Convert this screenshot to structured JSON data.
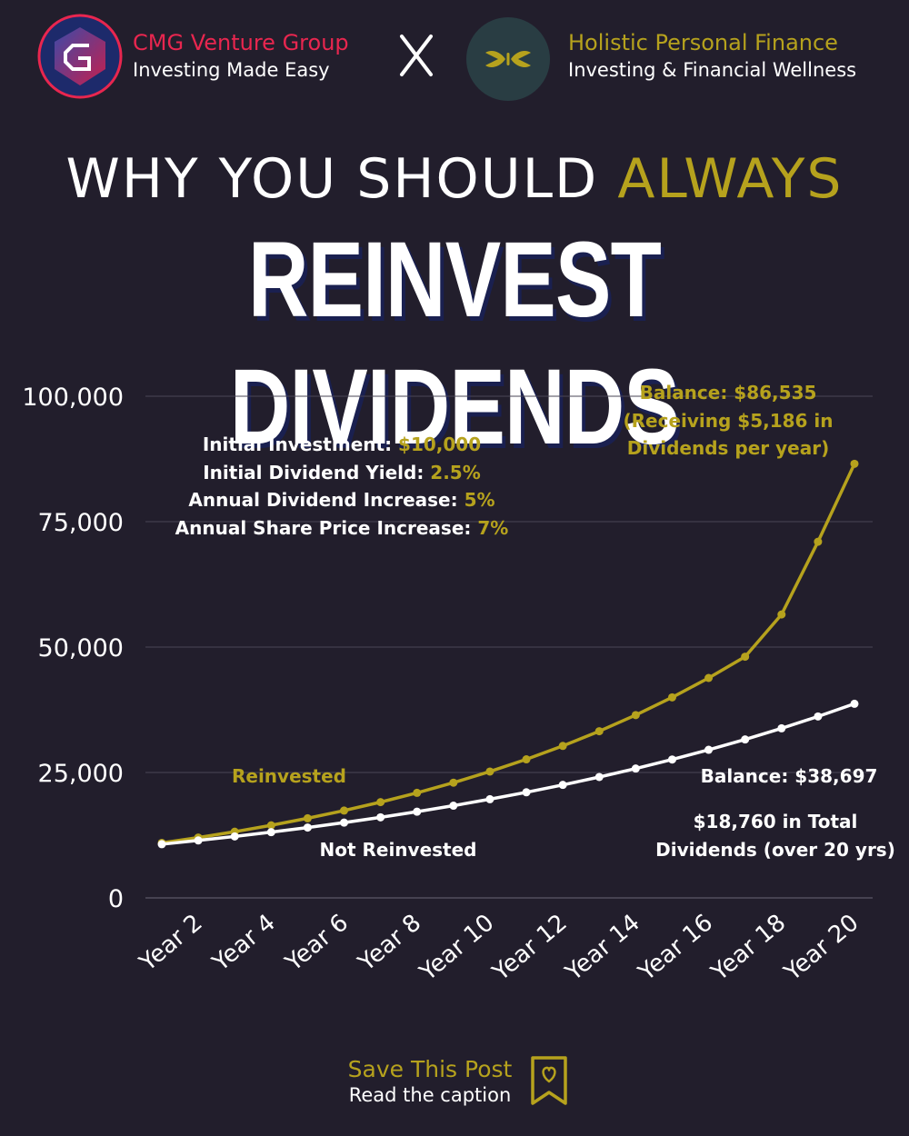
{
  "colors": {
    "background": "#221e2c",
    "gold": "#b6a21d",
    "white": "#ffffff",
    "cmg_red": "#e8264f",
    "grid": "#4a4656"
  },
  "header": {
    "left": {
      "name": "CMG Venture Group",
      "tagline": "Investing Made Easy",
      "logo_icon": "cmg-logo-icon"
    },
    "separator": "X",
    "right": {
      "name": "Holistic Personal Finance",
      "tagline": "Investing & Financial Wellness",
      "logo_icon": "butterfly-logo-icon"
    }
  },
  "title": {
    "line1_white": "WHY YOU SHOULD",
    "line1_gold": "ALWAYS",
    "line2": "REINVEST DIVIDENDS"
  },
  "assumptions": [
    {
      "label": "Initial Investment:",
      "value": "$10,000"
    },
    {
      "label": "Initial Dividend Yield:",
      "value": "2.5%"
    },
    {
      "label": "Annual Dividend Increase:",
      "value": "5%"
    },
    {
      "label": "Annual Share Price Increase:",
      "value": "7%"
    }
  ],
  "callouts": {
    "reinvested_balance": [
      "Balance: $86,535",
      "(Receiving $5,186 in",
      "Dividends per year)"
    ],
    "not_reinvested_balance": "Balance: $38,697",
    "not_reinvested_dividends": [
      "$18,760 in Total",
      "Dividends (over 20 yrs)"
    ]
  },
  "chart_data": {
    "type": "line",
    "x": [
      "Year 1",
      "Year 2",
      "Year 3",
      "Year 4",
      "Year 5",
      "Year 6",
      "Year 7",
      "Year 8",
      "Year 9",
      "Year 10",
      "Year 11",
      "Year 12",
      "Year 13",
      "Year 14",
      "Year 15",
      "Year 16",
      "Year 17",
      "Year 18",
      "Year 19",
      "Year 20"
    ],
    "x_tick_labels": [
      "Year 2",
      "Year 4",
      "Year 6",
      "Year 8",
      "Year 10",
      "Year 12",
      "Year 14",
      "Year 16",
      "Year 18",
      "Year 20"
    ],
    "y_tick_labels": [
      "0",
      "25,000",
      "50,000",
      "75,000",
      "100,000"
    ],
    "y_ticks": [
      0,
      25000,
      50000,
      75000,
      100000
    ],
    "ylim": [
      0,
      100000
    ],
    "grid": true,
    "series": [
      {
        "name": "Reinvested",
        "color": "#b6a21d",
        "values": [
          10968,
          12029,
          13193,
          14470,
          15870,
          17406,
          19090,
          20938,
          22964,
          25187,
          27624,
          30297,
          33229,
          36445,
          39972,
          43840,
          48083,
          56500,
          71000,
          86535
        ]
      },
      {
        "name": "Not Reinvested",
        "color": "#ffffff",
        "values": [
          10700,
          11449,
          12250,
          13108,
          14026,
          15007,
          16058,
          17182,
          18385,
          19672,
          21049,
          22522,
          24098,
          25785,
          27590,
          29521,
          31588,
          33799,
          36165,
          38697
        ]
      }
    ]
  },
  "footer": {
    "title": "Save This Post",
    "subtitle": "Read the caption",
    "icon": "bookmark-heart-icon"
  }
}
